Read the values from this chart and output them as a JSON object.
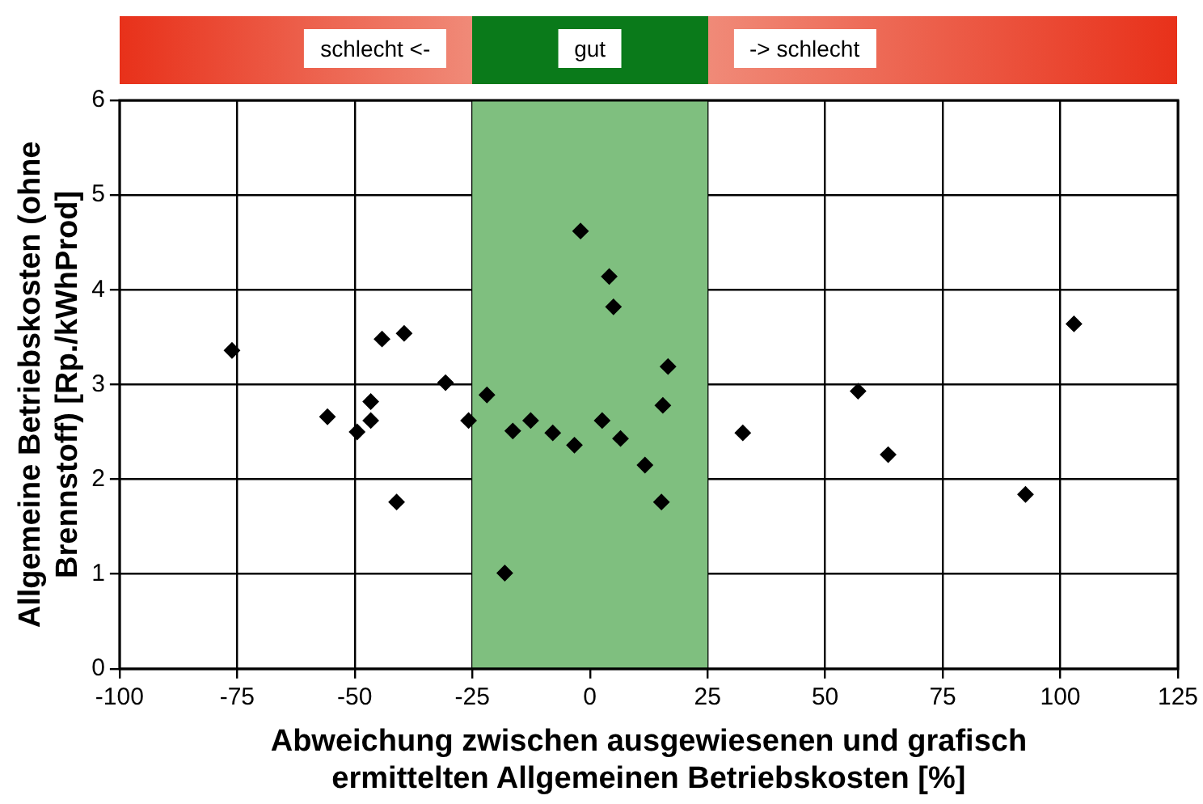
{
  "chart_data": {
    "type": "scatter",
    "xlabel": "Abweichung zwischen ausgewiesenen und grafisch\nermittelten Allgemeinen Betriebskosten [%]",
    "ylabel": "Allgemeine Betriebskosten (ohne\nBrennstoff) [Rp./kWhProd]",
    "annotations": [
      "schlecht <-",
      "gut",
      "-> schlecht"
    ],
    "series": [
      {
        "color": "#000000",
        "x": [
          -76.1,
          -55.8,
          -49.5,
          -46.6,
          -46.6,
          -44.2,
          -39.5,
          -41.1,
          -30.7,
          -25.8,
          -21.9,
          -18.1,
          -16.4,
          -12.6,
          -7.9,
          -3.3,
          -2.0,
          2.6,
          4.1,
          5.0,
          6.5,
          11.7,
          15.2,
          15.5,
          16.6,
          32.5,
          57.0,
          63.4,
          92.6,
          102.9
        ],
        "values": [
          3.36,
          2.66,
          2.5,
          2.82,
          2.62,
          3.48,
          3.54,
          1.76,
          3.02,
          2.62,
          2.89,
          1.01,
          2.51,
          2.62,
          2.49,
          2.36,
          4.62,
          2.62,
          4.14,
          3.82,
          2.43,
          2.15,
          1.76,
          2.78,
          3.19,
          2.49,
          2.93,
          2.26,
          1.84,
          3.64
        ]
      }
    ],
    "xlim": [
      -100,
      125
    ],
    "xticks": [
      -100,
      -75,
      -50,
      -25,
      0,
      25,
      50,
      75,
      100,
      125
    ],
    "ylim": [
      0,
      6
    ],
    "yticks": [
      0,
      1,
      2,
      3,
      4,
      5,
      6
    ],
    "bands": [
      {
        "axis": "x",
        "from": -25,
        "to": 25,
        "color": "#7fbf7f"
      }
    ],
    "grid": true,
    "marker": "diamond",
    "legend": false
  }
}
